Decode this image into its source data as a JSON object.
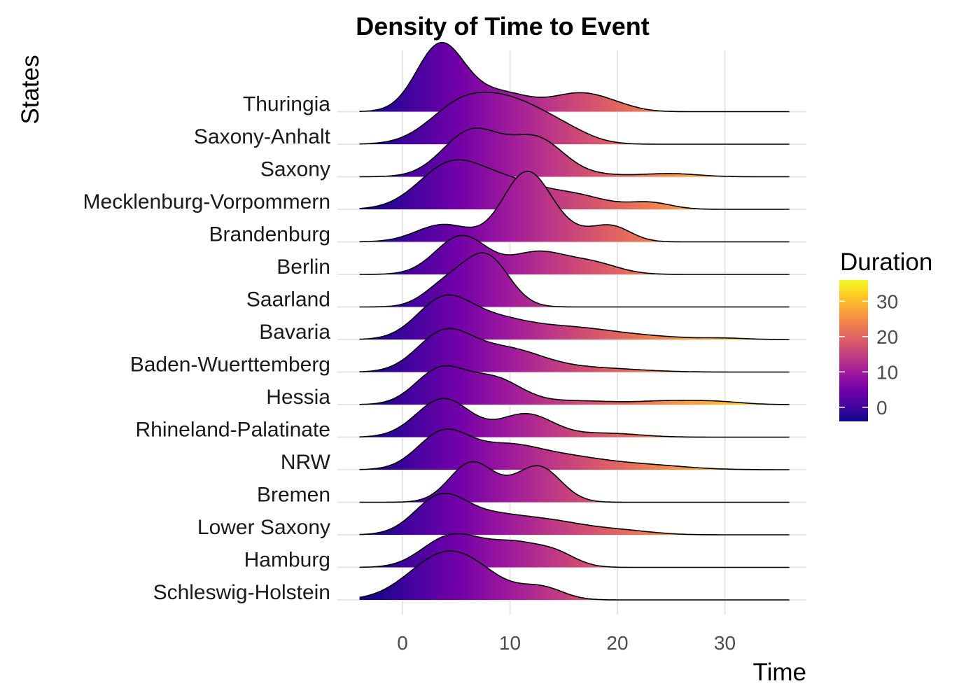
{
  "chart_data": {
    "type": "ridgeline",
    "title": "Density of Time to Event",
    "xlabel": "Time",
    "ylabel": "States",
    "xlim": [
      -4,
      36
    ],
    "xticks": [
      0,
      10,
      20,
      30
    ],
    "grid": true,
    "legend": {
      "title": "Duration",
      "position": "right",
      "ticks": [
        0,
        10,
        20,
        30
      ],
      "range": [
        -4,
        36
      ],
      "palette": "plasma",
      "colors": [
        "#0d0887",
        "#46039f",
        "#7201a8",
        "#9c179e",
        "#bd3786",
        "#d8576b",
        "#ed7953",
        "#fb9f3a",
        "#fdca26",
        "#f0f921"
      ]
    },
    "series": [
      {
        "name": "Schleswig-Holstein",
        "peaks": [
          [
            3.5,
            3.2,
            1.0
          ],
          [
            7,
            3,
            0.45
          ],
          [
            13,
            2.0,
            0.3
          ]
        ]
      },
      {
        "name": "Hamburg",
        "peaks": [
          [
            3.5,
            2.3,
            0.5
          ],
          [
            6.5,
            2.5,
            0.55
          ],
          [
            10.5,
            2.0,
            0.45
          ],
          [
            14,
            2.0,
            0.4
          ]
        ]
      },
      {
        "name": "Lower Saxony",
        "peaks": [
          [
            3.5,
            2.4,
            0.95
          ],
          [
            8.5,
            3.0,
            0.45
          ],
          [
            14,
            3.0,
            0.3
          ],
          [
            20,
            3.0,
            0.12
          ]
        ]
      },
      {
        "name": "Bremen",
        "peaks": [
          [
            6.3,
            2.0,
            0.9
          ],
          [
            12.8,
            2.0,
            0.8
          ],
          [
            9.5,
            3.0,
            0.25
          ]
        ]
      },
      {
        "name": "NRW",
        "peaks": [
          [
            3.8,
            2.4,
            0.95
          ],
          [
            9.5,
            3.0,
            0.55
          ],
          [
            15,
            3.5,
            0.3
          ],
          [
            22,
            4.0,
            0.13
          ]
        ]
      },
      {
        "name": "Rhineland-Palatinate",
        "peaks": [
          [
            3.8,
            2.5,
            1.0
          ],
          [
            11.5,
            2.5,
            0.6
          ],
          [
            19,
            3.0,
            0.1
          ]
        ]
      },
      {
        "name": "Hessia",
        "peaks": [
          [
            3.5,
            2.3,
            0.9
          ],
          [
            8.5,
            2.5,
            0.65
          ],
          [
            16,
            4.0,
            0.1
          ],
          [
            24.5,
            2.5,
            0.08
          ],
          [
            29,
            2.5,
            0.08
          ]
        ]
      },
      {
        "name": "Baden-Wuerttemberg",
        "peaks": [
          [
            3.8,
            2.5,
            0.95
          ],
          [
            9.5,
            3.5,
            0.6
          ],
          [
            18,
            4.0,
            0.1
          ]
        ]
      },
      {
        "name": "Bavaria",
        "peaks": [
          [
            3.8,
            2.5,
            1.0
          ],
          [
            8.5,
            3.0,
            0.45
          ],
          [
            15,
            4.0,
            0.3
          ],
          [
            22,
            4.0,
            0.08
          ],
          [
            30,
            2.0,
            0.03
          ]
        ]
      },
      {
        "name": "Saarland",
        "peaks": [
          [
            7.8,
            2.1,
            1.3
          ],
          [
            4,
            2.0,
            0.55
          ]
        ]
      },
      {
        "name": "Berlin",
        "peaks": [
          [
            5.5,
            2.4,
            1.0
          ],
          [
            12.5,
            2.5,
            0.55
          ],
          [
            17.5,
            2.5,
            0.3
          ]
        ]
      },
      {
        "name": "Brandenburg",
        "peaks": [
          [
            3.8,
            2.5,
            0.45
          ],
          [
            11.5,
            2.2,
            1.7
          ],
          [
            19.5,
            1.8,
            0.35
          ],
          [
            15,
            3.0,
            0.25
          ]
        ]
      },
      {
        "name": "Mecklenburg-Vorpommern",
        "peaks": [
          [
            4.5,
            3.0,
            1.15
          ],
          [
            10,
            3.0,
            0.6
          ],
          [
            16,
            3.0,
            0.35
          ],
          [
            23,
            2.0,
            0.17
          ]
        ]
      },
      {
        "name": "Saxony",
        "peaks": [
          [
            6.5,
            2.7,
            1.2
          ],
          [
            12.5,
            2.5,
            0.95
          ],
          [
            25,
            2.5,
            0.08
          ],
          [
            18,
            3.0,
            0.05
          ]
        ]
      },
      {
        "name": "Saxony-Anhalt",
        "peaks": [
          [
            5.5,
            3.0,
            1.0
          ],
          [
            10.5,
            3.0,
            0.9
          ],
          [
            15,
            2.5,
            0.3
          ]
        ]
      },
      {
        "name": "Thuringia",
        "peaks": [
          [
            3.5,
            2.2,
            1.7
          ],
          [
            9,
            3.0,
            0.5
          ],
          [
            16.5,
            2.5,
            0.45
          ],
          [
            20,
            2.0,
            0.1
          ]
        ]
      }
    ]
  }
}
